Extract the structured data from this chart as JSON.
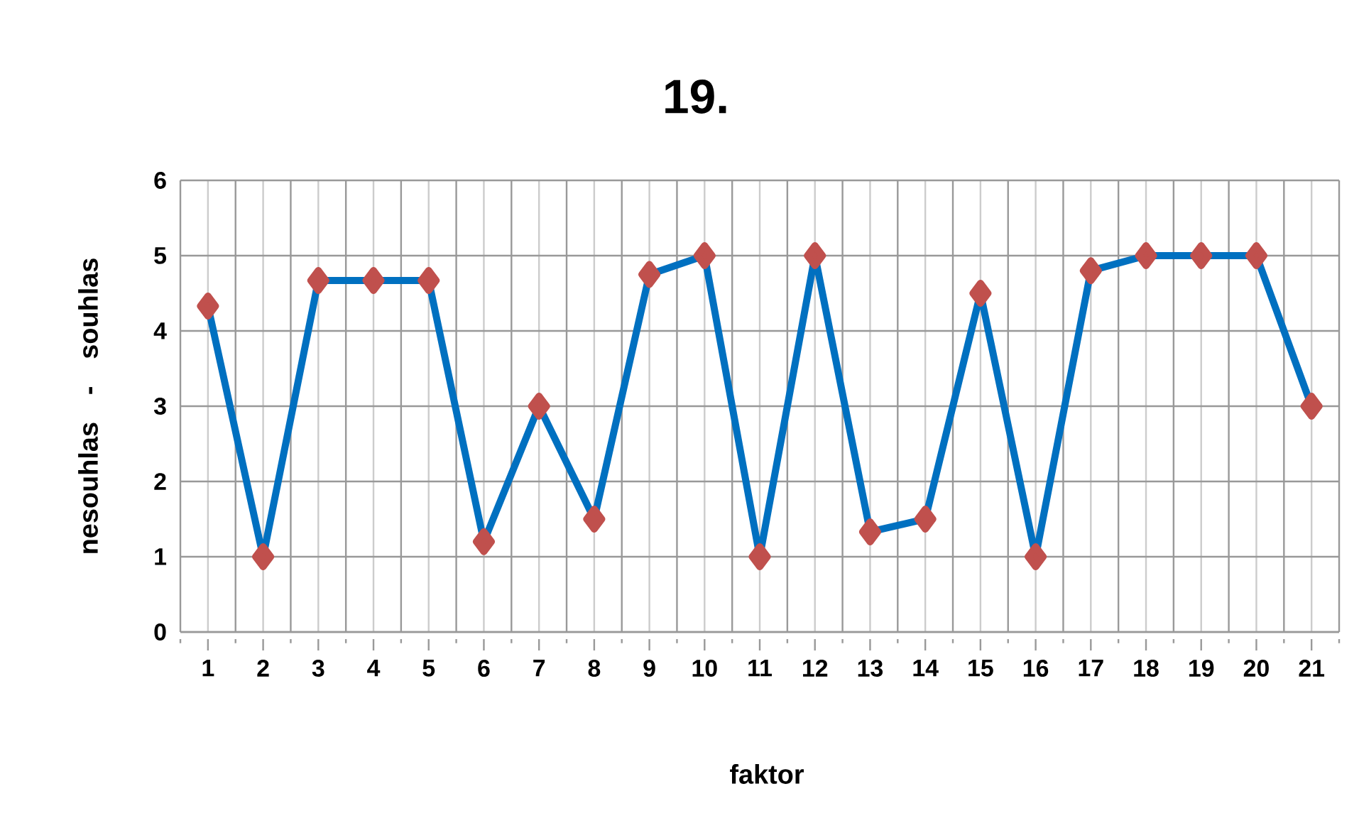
{
  "chart_data": {
    "type": "line",
    "title": "19.",
    "xlabel": "faktor",
    "ylabel": "nesouhlas   -   souhlas",
    "categories": [
      "1",
      "2",
      "3",
      "4",
      "5",
      "6",
      "7",
      "8",
      "9",
      "10",
      "11",
      "12",
      "13",
      "14",
      "15",
      "16",
      "17",
      "18",
      "19",
      "20",
      "21"
    ],
    "series": [
      {
        "color": "#0070c0",
        "values": [
          4.33,
          1,
          4.67,
          4.67,
          4.67,
          1.2,
          3,
          1.5,
          4.75,
          5,
          1,
          5,
          1.33,
          1.5,
          4.5,
          1,
          4.8,
          5,
          5,
          5,
          3
        ]
      }
    ],
    "ylim": [
      0,
      6
    ],
    "yticks": [
      0,
      1,
      2,
      3,
      4,
      5,
      6
    ],
    "grid": true,
    "marker": "diamond",
    "line_style": "solid"
  }
}
